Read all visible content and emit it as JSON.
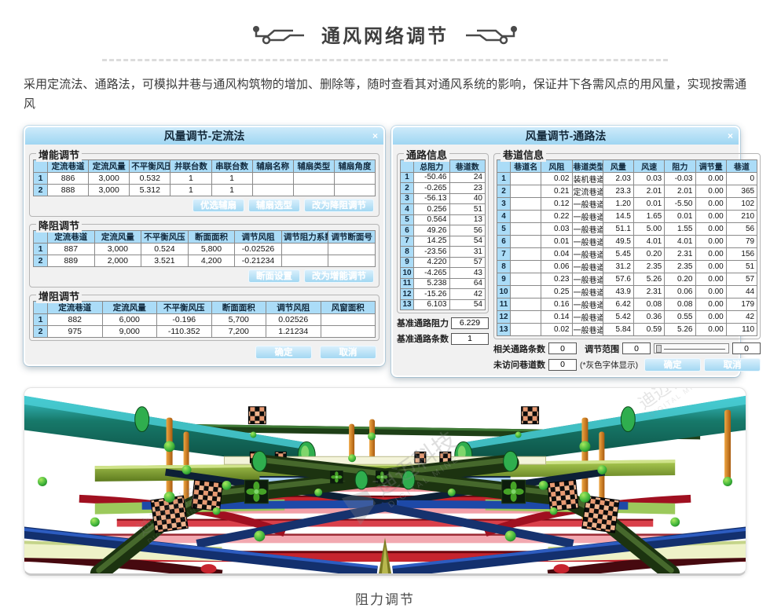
{
  "page": {
    "title": "通风网络调节",
    "description": "采用定流法、通路法，可模拟井巷与通风构筑物的增加、删除等，随时查看其对通风系统的影响，保证井下各需风点的用风量，实现按需通风",
    "caption": "阻力调节",
    "watermark_cn": "迪迈科技",
    "watermark_en": "DIGITAL MINE"
  },
  "colors": {
    "titlebar_blue": "#a9daf3",
    "table_header_blue": "#abdcf7",
    "button_blue": "#aee0f8",
    "pipe_teal": "#136055",
    "pipe_olive": "#7a9a28",
    "pipe_blue": "#1d49a8",
    "pipe_red": "#c6242e",
    "pipe_pink": "#f2a0a8",
    "pipe_darkgreen": "#2d4a1e",
    "node_copper": "#e89a72",
    "sphere_green": "#3db33a",
    "post_orange": "#d98220"
  },
  "dialog_fixed_flow": {
    "title": "风量调节-定流法",
    "close_label": "×",
    "energy": {
      "legend": "增能调节",
      "table": {
        "headers": [
          "定流巷道",
          "定流风量",
          "不平衡风压",
          "并联台数",
          "串联台数",
          "辅扇名称",
          "辅扇类型",
          "辅扇角度"
        ],
        "rows": [
          [
            "886",
            "3,000",
            "0.532",
            "1",
            "1",
            "",
            "",
            ""
          ],
          [
            "888",
            "3,000",
            "5.312",
            "1",
            "1",
            "",
            "",
            ""
          ]
        ]
      },
      "buttons": [
        "优选辅扇",
        "辅扇选型",
        "改为降阻调节"
      ]
    },
    "reduce": {
      "legend": "降阻调节",
      "table": {
        "headers": [
          "定流巷道",
          "定流风量",
          "不平衡风压",
          "断面面积",
          "调节风阻",
          "调节阻力系数",
          "调节断面号"
        ],
        "rows": [
          [
            "887",
            "3,000",
            "0.524",
            "5,800",
            "-0.02526",
            "",
            ""
          ],
          [
            "889",
            "2,000",
            "3.521",
            "4,200",
            "-0.21234",
            "",
            ""
          ]
        ]
      },
      "buttons": [
        "断面设置",
        "改为增能调节"
      ]
    },
    "increase": {
      "legend": "增阻调节",
      "table": {
        "headers": [
          "定流巷道",
          "定流风量",
          "不平衡风压",
          "断面面积",
          "调节风阻",
          "风窗面积"
        ],
        "rows": [
          [
            "882",
            "6,000",
            "-0.196",
            "5,700",
            "0.02526",
            ""
          ],
          [
            "975",
            "9,000",
            "-110.352",
            "7,200",
            "1.21234",
            ""
          ]
        ]
      }
    },
    "ok": "确定",
    "cancel": "取消"
  },
  "dialog_path": {
    "title": "风量调节-通路法",
    "close_label": "×",
    "path_info": {
      "legend": "通路信息",
      "table": {
        "headers": [
          "总阻力",
          "巷道数"
        ],
        "rows": [
          [
            "-50.46",
            "24"
          ],
          [
            "-0.265",
            "23"
          ],
          [
            "-56.13",
            "40"
          ],
          [
            "0.256",
            "51"
          ],
          [
            "0.564",
            "13"
          ],
          [
            "49.26",
            "56"
          ],
          [
            "14.25",
            "54"
          ],
          [
            "-23.56",
            "31"
          ],
          [
            "4.220",
            "57"
          ],
          [
            "-4.265",
            "43"
          ],
          [
            "5.238",
            "64"
          ],
          [
            "-15.26",
            "42"
          ],
          [
            "6.103",
            "54"
          ]
        ]
      },
      "base_resistance_label": "基准通路阻力",
      "base_resistance_value": "6.229",
      "base_count_label": "基准通路条数",
      "base_count_value": "1"
    },
    "roadway_info": {
      "legend": "巷道信息",
      "table": {
        "headers": [
          "巷道名",
          "风阻",
          "巷道类型",
          "风量",
          "风速",
          "阻力",
          "调节量",
          "巷道"
        ],
        "rows": [
          [
            "",
            "0.02",
            "装机巷道",
            "2.03",
            "0.03",
            "-0.03",
            "0.00",
            "0"
          ],
          [
            "",
            "0.21",
            "定流巷道",
            "23.3",
            "2.01",
            "2.01",
            "0.00",
            "365"
          ],
          [
            "",
            "0.12",
            "一般巷道",
            "1.20",
            "0.01",
            "-5.50",
            "0.00",
            "102"
          ],
          [
            "",
            "0.22",
            "一般巷道",
            "14.5",
            "1.65",
            "0.01",
            "0.00",
            "210"
          ],
          [
            "",
            "0.03",
            "一般巷道",
            "51.1",
            "5.00",
            "1.55",
            "0.00",
            "56"
          ],
          [
            "",
            "0.01",
            "一般巷道",
            "49.5",
            "4.01",
            "4.01",
            "0.00",
            "79"
          ],
          [
            "",
            "0.04",
            "一般巷道",
            "5.45",
            "0.20",
            "2.31",
            "0.00",
            "156"
          ],
          [
            "",
            "0.06",
            "一般巷道",
            "31.2",
            "2.35",
            "2.35",
            "0.00",
            "51"
          ],
          [
            "",
            "0.23",
            "一般巷道",
            "57.6",
            "5.26",
            "0.20",
            "0.00",
            "57"
          ],
          [
            "",
            "0.25",
            "一般巷道",
            "43.9",
            "2.31",
            "0.06",
            "0.00",
            "44"
          ],
          [
            "",
            "0.16",
            "一般巷道",
            "6.42",
            "0.08",
            "0.08",
            "0.00",
            "179"
          ],
          [
            "",
            "0.14",
            "一般巷道",
            "5.42",
            "0.36",
            "0.55",
            "0.00",
            "42"
          ],
          [
            "",
            "0.02",
            "一般巷道",
            "5.84",
            "0.59",
            "5.26",
            "0.00",
            "110"
          ]
        ]
      }
    },
    "footer": {
      "related_label": "相关通路条数",
      "related_value": "0",
      "range_label": "调节范围",
      "range_min": "0",
      "range_max": "0",
      "unvisited_label": "未访问巷道数",
      "unvisited_value": "0",
      "note": "(*灰色字体显示)",
      "ok": "确定",
      "cancel": "取消"
    }
  }
}
